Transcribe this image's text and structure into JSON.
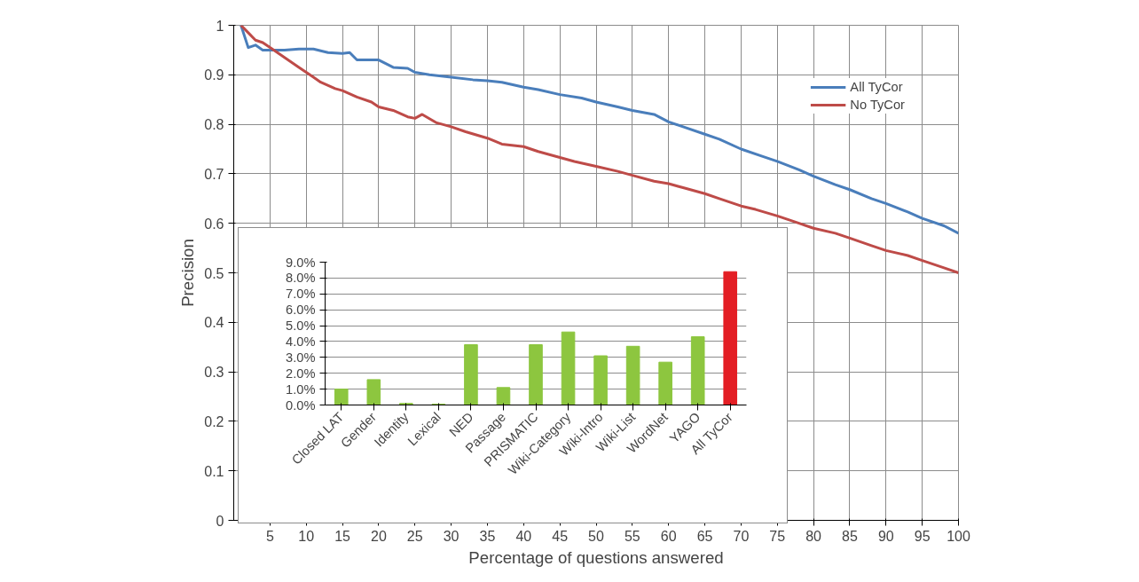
{
  "chart_data": [
    {
      "type": "line",
      "xlabel": "Percentage of questions answered",
      "ylabel": "Precision",
      "xlim": [
        0,
        100
      ],
      "xticks": [
        5,
        10,
        15,
        20,
        25,
        30,
        35,
        40,
        45,
        50,
        55,
        60,
        65,
        70,
        75,
        80,
        85,
        90,
        95,
        100
      ],
      "ylim": [
        0,
        1
      ],
      "yticks": [
        0,
        0.1,
        0.2,
        0.3,
        0.4,
        0.5,
        0.6,
        0.7,
        0.8,
        0.9,
        1
      ],
      "grid": true,
      "legend": "top right",
      "line_style": "solid",
      "series": [
        {
          "name": "All TyCor",
          "color": "#4a7ebb",
          "x": [
            1,
            2,
            3,
            4,
            5,
            7,
            9,
            11,
            13,
            15,
            16,
            17,
            19,
            20,
            22,
            24,
            25,
            27,
            30,
            33,
            35,
            37,
            40,
            42,
            45,
            48,
            50,
            53,
            55,
            58,
            60,
            62,
            65,
            67,
            70,
            73,
            75,
            78,
            80,
            83,
            85,
            88,
            90,
            93,
            95,
            98,
            100
          ],
          "values": [
            1.0,
            0.955,
            0.96,
            0.95,
            0.95,
            0.95,
            0.952,
            0.952,
            0.945,
            0.943,
            0.945,
            0.93,
            0.93,
            0.93,
            0.915,
            0.913,
            0.905,
            0.9,
            0.895,
            0.89,
            0.888,
            0.885,
            0.875,
            0.87,
            0.86,
            0.853,
            0.845,
            0.835,
            0.828,
            0.82,
            0.805,
            0.795,
            0.78,
            0.77,
            0.75,
            0.735,
            0.725,
            0.708,
            0.695,
            0.678,
            0.668,
            0.65,
            0.64,
            0.623,
            0.61,
            0.595,
            0.58
          ]
        },
        {
          "name": "No TyCor",
          "color": "#be4b48",
          "x": [
            1,
            2,
            3,
            4,
            5,
            7,
            9,
            10,
            11,
            12,
            14,
            15,
            17,
            19,
            20,
            22,
            24,
            25,
            26,
            28,
            30,
            32,
            35,
            37,
            40,
            42,
            45,
            47,
            50,
            53,
            55,
            58,
            60,
            62,
            65,
            67,
            70,
            72,
            75,
            78,
            80,
            83,
            85,
            88,
            90,
            93,
            95,
            98,
            100
          ],
          "values": [
            1.0,
            0.985,
            0.97,
            0.965,
            0.955,
            0.935,
            0.915,
            0.905,
            0.895,
            0.885,
            0.872,
            0.868,
            0.855,
            0.845,
            0.835,
            0.828,
            0.815,
            0.812,
            0.82,
            0.803,
            0.795,
            0.785,
            0.772,
            0.76,
            0.755,
            0.745,
            0.733,
            0.725,
            0.715,
            0.705,
            0.697,
            0.685,
            0.68,
            0.672,
            0.66,
            0.65,
            0.635,
            0.628,
            0.615,
            0.6,
            0.59,
            0.58,
            0.57,
            0.555,
            0.545,
            0.535,
            0.525,
            0.51,
            0.5
          ]
        }
      ]
    },
    {
      "type": "bar",
      "categories": [
        "Closed LAT",
        "Gender",
        "Identity",
        "Lexical",
        "NED",
        "Passage",
        "PRISMATIC",
        "Wiki-Category",
        "Wiki-Intro",
        "Wiki-List",
        "WordNet",
        "YAGO",
        "All TyCor"
      ],
      "values": [
        1.0,
        1.6,
        0.1,
        0.05,
        3.8,
        1.1,
        3.8,
        4.6,
        3.1,
        3.7,
        2.7,
        4.3,
        8.4
      ],
      "colors": [
        "#8dc63f",
        "#8dc63f",
        "#8dc63f",
        "#8dc63f",
        "#8dc63f",
        "#8dc63f",
        "#8dc63f",
        "#8dc63f",
        "#8dc63f",
        "#8dc63f",
        "#8dc63f",
        "#8dc63f",
        "#e31e24"
      ],
      "ylim": [
        0,
        9
      ],
      "yticks": [
        {
          "value": 0,
          "label": "0.0%"
        },
        {
          "value": 1,
          "label": "1.0%"
        },
        {
          "value": 2,
          "label": "2.0%"
        },
        {
          "value": 3,
          "label": "3.0%"
        },
        {
          "value": 4,
          "label": "4.0%"
        },
        {
          "value": 5,
          "label": "5.0%"
        },
        {
          "value": 6,
          "label": "6.0%"
        },
        {
          "value": 7,
          "label": "7.0%"
        },
        {
          "value": 8,
          "label": "8.0%"
        },
        {
          "value": 9,
          "label": "9.0%"
        }
      ],
      "grid": "y"
    }
  ]
}
